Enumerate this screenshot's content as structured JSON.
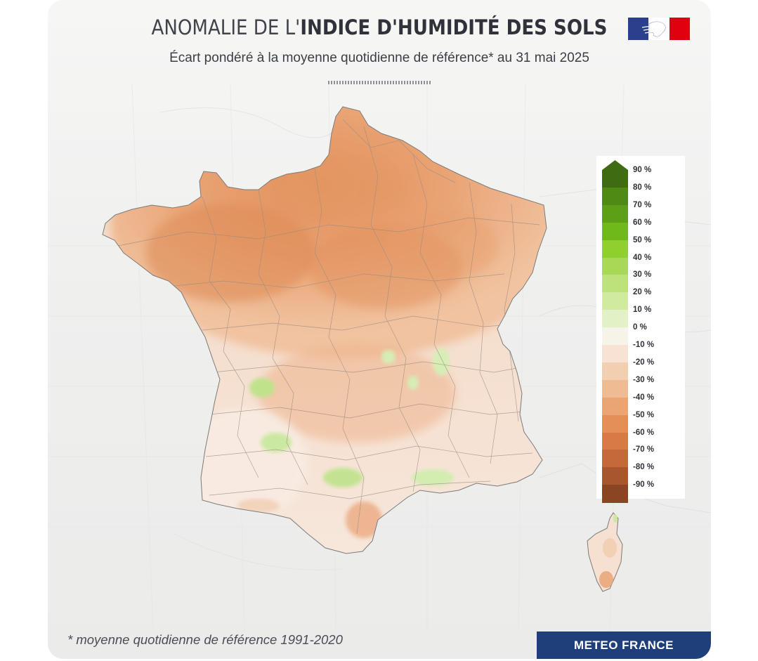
{
  "header": {
    "title_light": "ANOMALIE DE L'",
    "title_bold": "INDICE D'HUMIDITÉ DES SOLS",
    "subtitle": "Écart pondéré à la moyenne quotidienne de référence* au 31 mai 2025"
  },
  "logo": {
    "name": "republique-francaise-logo",
    "colors": [
      "#2b3f8c",
      "#ffffff",
      "#e1000f"
    ]
  },
  "legend": {
    "items": [
      {
        "label": "90 %",
        "color": "#3f6b13"
      },
      {
        "label": "80 %",
        "color": "#4f8a14"
      },
      {
        "label": "70 %",
        "color": "#5da017"
      },
      {
        "label": "60 %",
        "color": "#6fba1a"
      },
      {
        "label": "50 %",
        "color": "#8fd02e"
      },
      {
        "label": "40 %",
        "color": "#a7d957"
      },
      {
        "label": "30 %",
        "color": "#bde27c"
      },
      {
        "label": "20 %",
        "color": "#d0eba0"
      },
      {
        "label": "10 %",
        "color": "#e2f2c6"
      },
      {
        "label": "0 %",
        "color": "#f6f3e9"
      },
      {
        "label": "-10 %",
        "color": "#f7e2d3"
      },
      {
        "label": "-20 %",
        "color": "#f3cfb2"
      },
      {
        "label": "-30 %",
        "color": "#efbb93"
      },
      {
        "label": "-40 %",
        "color": "#eba574"
      },
      {
        "label": "-50 %",
        "color": "#e38f57"
      },
      {
        "label": "-60 %",
        "color": "#d77a45"
      },
      {
        "label": "-70 %",
        "color": "#c46a3a"
      },
      {
        "label": "-80 %",
        "color": "#a8562d"
      },
      {
        "label": "-90 %",
        "color": "#8a4523"
      }
    ]
  },
  "map": {
    "regions": [
      "France métropolitaine",
      "Corse"
    ],
    "colors": {
      "sea": "#ecedec",
      "land_background": "#f3f3f2",
      "dry_north": "#eba574",
      "dry_core": "#e39460",
      "south_mixed": "#f6e6da",
      "wet_patches": "#c9e79a"
    }
  },
  "footer": {
    "footnote": "* moyenne quotidienne de référence 1991-2020",
    "brand": "METEO FRANCE"
  }
}
